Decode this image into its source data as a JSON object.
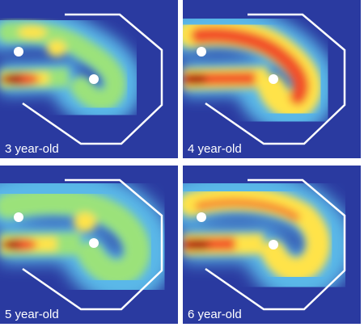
{
  "panels": [
    {
      "label": "3 year-old"
    },
    {
      "label": "4 year-old"
    },
    {
      "label": "5 year-old"
    },
    {
      "label": "6 year-old"
    }
  ],
  "colors": {
    "background": "#2a3aa0",
    "low": "#5ab8e8",
    "mid_low": "#9be27a",
    "mid": "#ffe34a",
    "high": "#f2502a",
    "peak": "#a80c0c",
    "track": "#ffffff"
  }
}
